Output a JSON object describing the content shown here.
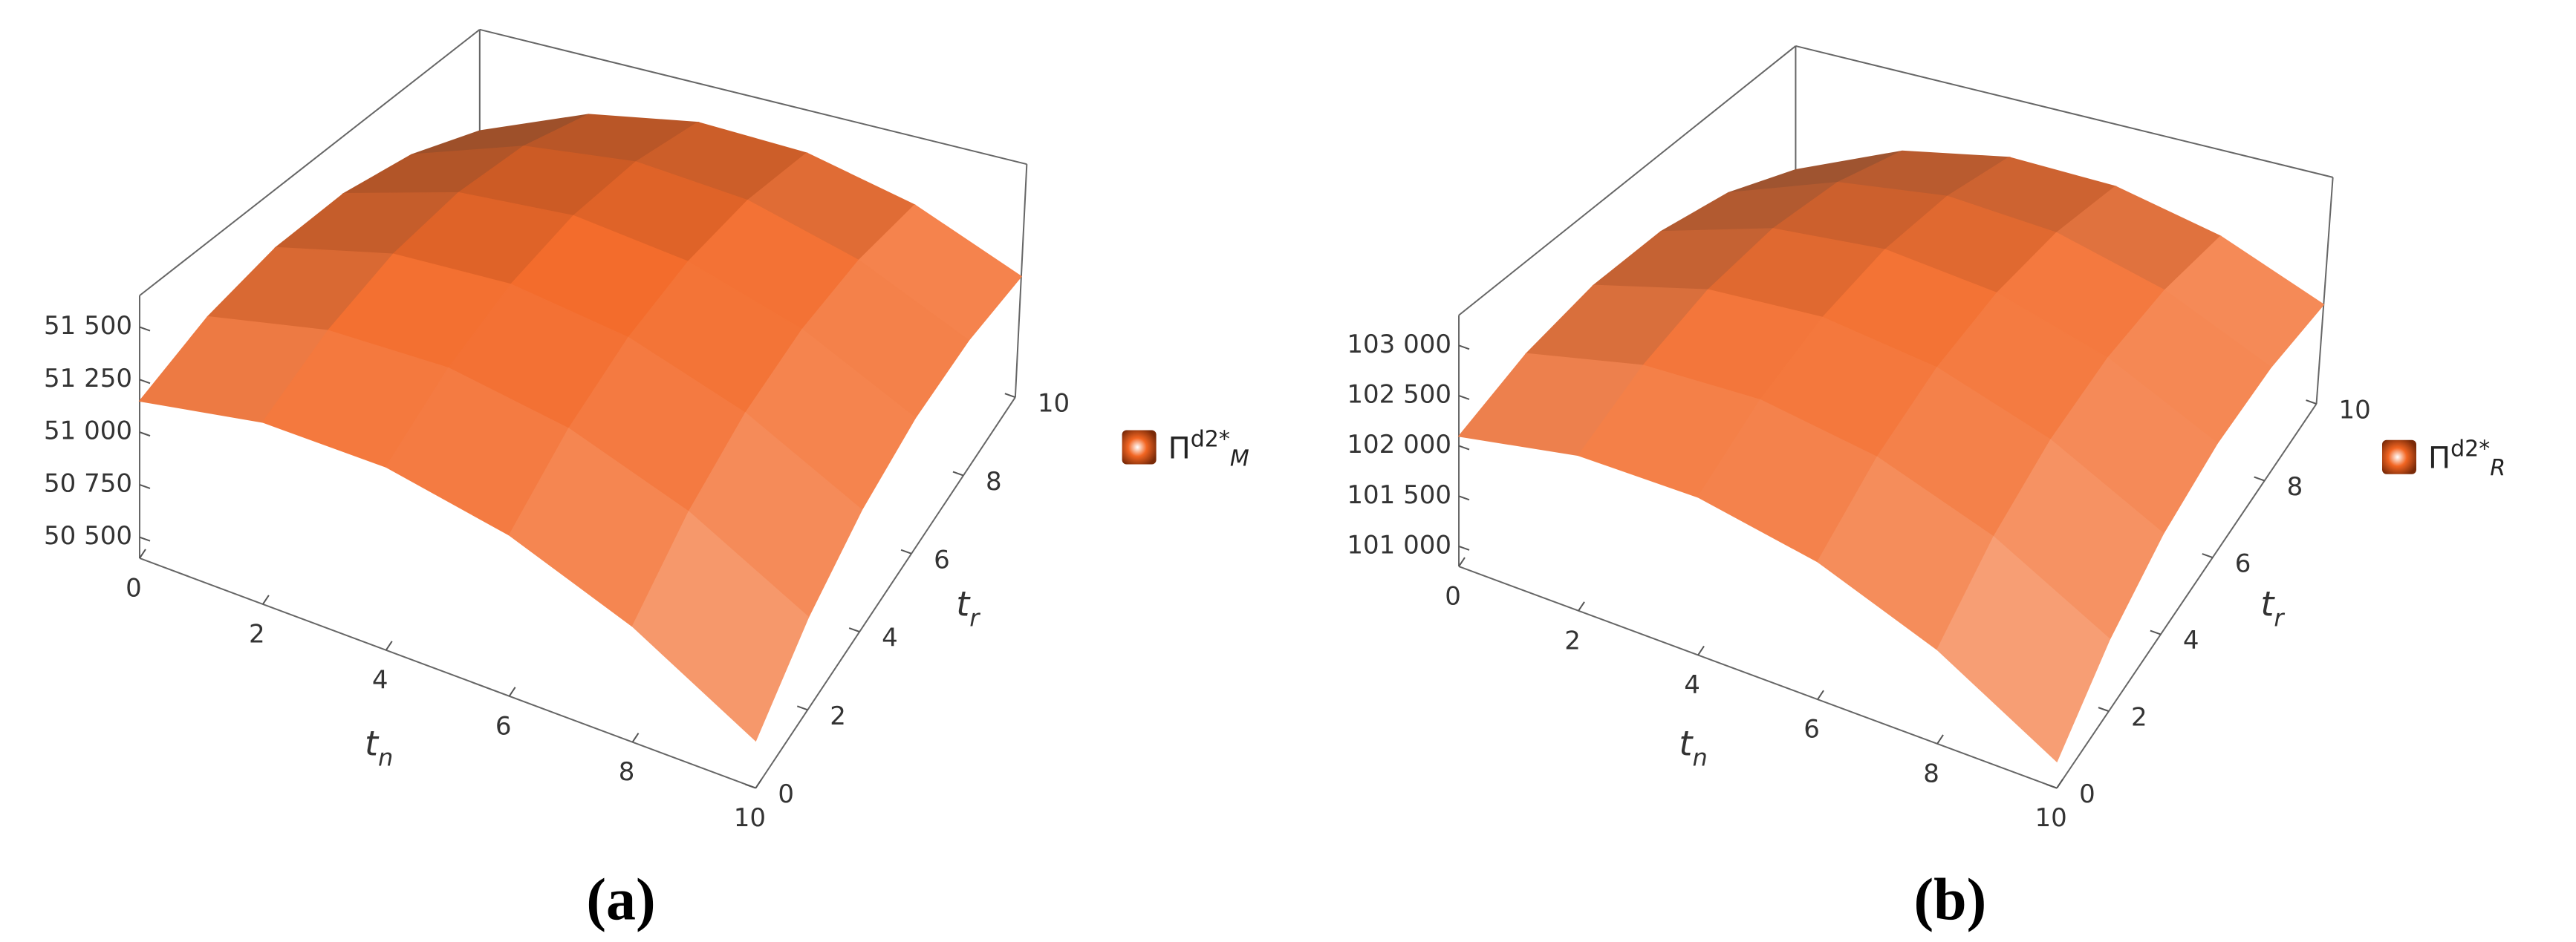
{
  "chart_data": [
    {
      "type": "surface",
      "panel_label": "(a)",
      "x_label": {
        "symbol": "t",
        "subscript": "n"
      },
      "y_label": {
        "symbol": "t",
        "subscript": "r"
      },
      "legend": {
        "symbol": "Π",
        "superscript": "d2*",
        "subscript": "M"
      },
      "color": "#f26522",
      "x": [
        0,
        2,
        4,
        6,
        8,
        10
      ],
      "y": [
        0,
        2,
        4,
        6,
        8,
        10
      ],
      "z": [
        [
          51148,
          51296,
          51372,
          51376,
          51308,
          51168
        ],
        [
          51268,
          51432,
          51524,
          51544,
          51492,
          51368
        ],
        [
          51276,
          51456,
          51564,
          51600,
          51564,
          51456
        ],
        [
          51172,
          51368,
          51492,
          51544,
          51524,
          51432
        ],
        [
          50956,
          51168,
          51308,
          51376,
          51372,
          51296
        ],
        [
          50628,
          50856,
          51012,
          51096,
          51108,
          51048
        ]
      ],
      "xlim": [
        0,
        10
      ],
      "ylim": [
        0,
        10
      ],
      "zlim": [
        50400,
        51650
      ],
      "xticks": [
        0,
        2,
        4,
        6,
        8,
        10
      ],
      "yticks": [
        0,
        2,
        4,
        6,
        8,
        10
      ],
      "zticks": [
        {
          "value": 50500,
          "label": "50 500"
        },
        {
          "value": 50750,
          "label": "50 750"
        },
        {
          "value": 51000,
          "label": "51 000"
        },
        {
          "value": 51250,
          "label": "51 250"
        },
        {
          "value": 51500,
          "label": "51 500"
        }
      ]
    },
    {
      "type": "surface",
      "panel_label": "(b)",
      "x_label": {
        "symbol": "t",
        "subscript": "n"
      },
      "y_label": {
        "symbol": "t",
        "subscript": "r"
      },
      "legend": {
        "symbol": "Π",
        "superscript": "d2*",
        "subscript": "R"
      },
      "color": "#f26522",
      "x": [
        0,
        2,
        4,
        6,
        8,
        10
      ],
      "y": [
        0,
        2,
        4,
        6,
        8,
        10
      ],
      "z": [
        [
          102096,
          102392,
          102544,
          102552,
          102416,
          102136
        ],
        [
          102336,
          102664,
          102848,
          102888,
          102784,
          102536
        ],
        [
          102352,
          102712,
          102928,
          103000,
          102928,
          102712
        ],
        [
          102144,
          102536,
          102784,
          102888,
          102848,
          102664
        ],
        [
          101712,
          102136,
          102416,
          102552,
          102544,
          102392
        ],
        [
          101056,
          101512,
          101824,
          101992,
          102016,
          101896
        ]
      ],
      "xlim": [
        0,
        10
      ],
      "ylim": [
        0,
        10
      ],
      "zlim": [
        100800,
        103300
      ],
      "xticks": [
        0,
        2,
        4,
        6,
        8,
        10
      ],
      "yticks": [
        0,
        2,
        4,
        6,
        8,
        10
      ],
      "zticks": [
        {
          "value": 101000,
          "label": "101 000"
        },
        {
          "value": 101500,
          "label": "101 500"
        },
        {
          "value": 102000,
          "label": "102 000"
        },
        {
          "value": 102500,
          "label": "102 500"
        },
        {
          "value": 103000,
          "label": "103 000"
        }
      ]
    }
  ]
}
